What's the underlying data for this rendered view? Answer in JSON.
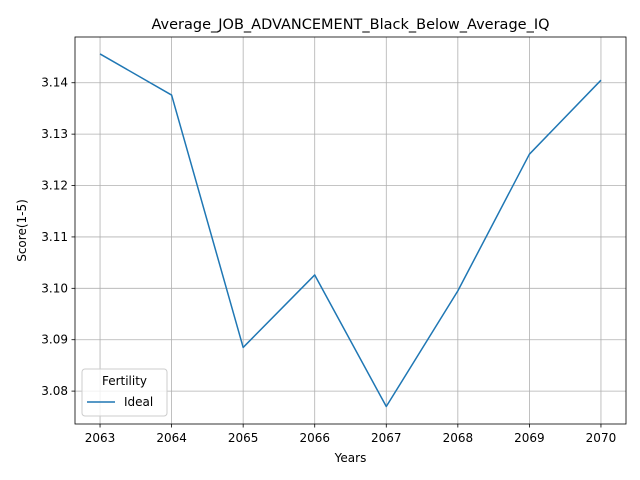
{
  "chart_data": {
    "type": "line",
    "title": "Average_JOB_ADVANCEMENT_Black_Below_Average_IQ",
    "xlabel": "Years",
    "ylabel": "Score(1-5)",
    "x": [
      "2063",
      "2064",
      "2065",
      "2066",
      "2067",
      "2068",
      "2069",
      "2070"
    ],
    "series": [
      {
        "name": "Ideal",
        "color": "#1f77b4",
        "values": [
          3.1456,
          3.1376,
          3.0885,
          3.1026,
          3.077,
          3.0995,
          3.1261,
          3.1405
        ]
      }
    ],
    "xlim": [
      2062.65,
      2070.35
    ],
    "ylim": [
      3.0736,
      3.1489
    ],
    "yticks": [
      "3.08",
      "3.09",
      "3.10",
      "3.11",
      "3.12",
      "3.13",
      "3.14"
    ],
    "ytick_values": [
      3.08,
      3.09,
      3.1,
      3.11,
      3.12,
      3.13,
      3.14
    ],
    "grid": true,
    "legend": {
      "title": "Fertility",
      "placement": "lower-left"
    }
  }
}
